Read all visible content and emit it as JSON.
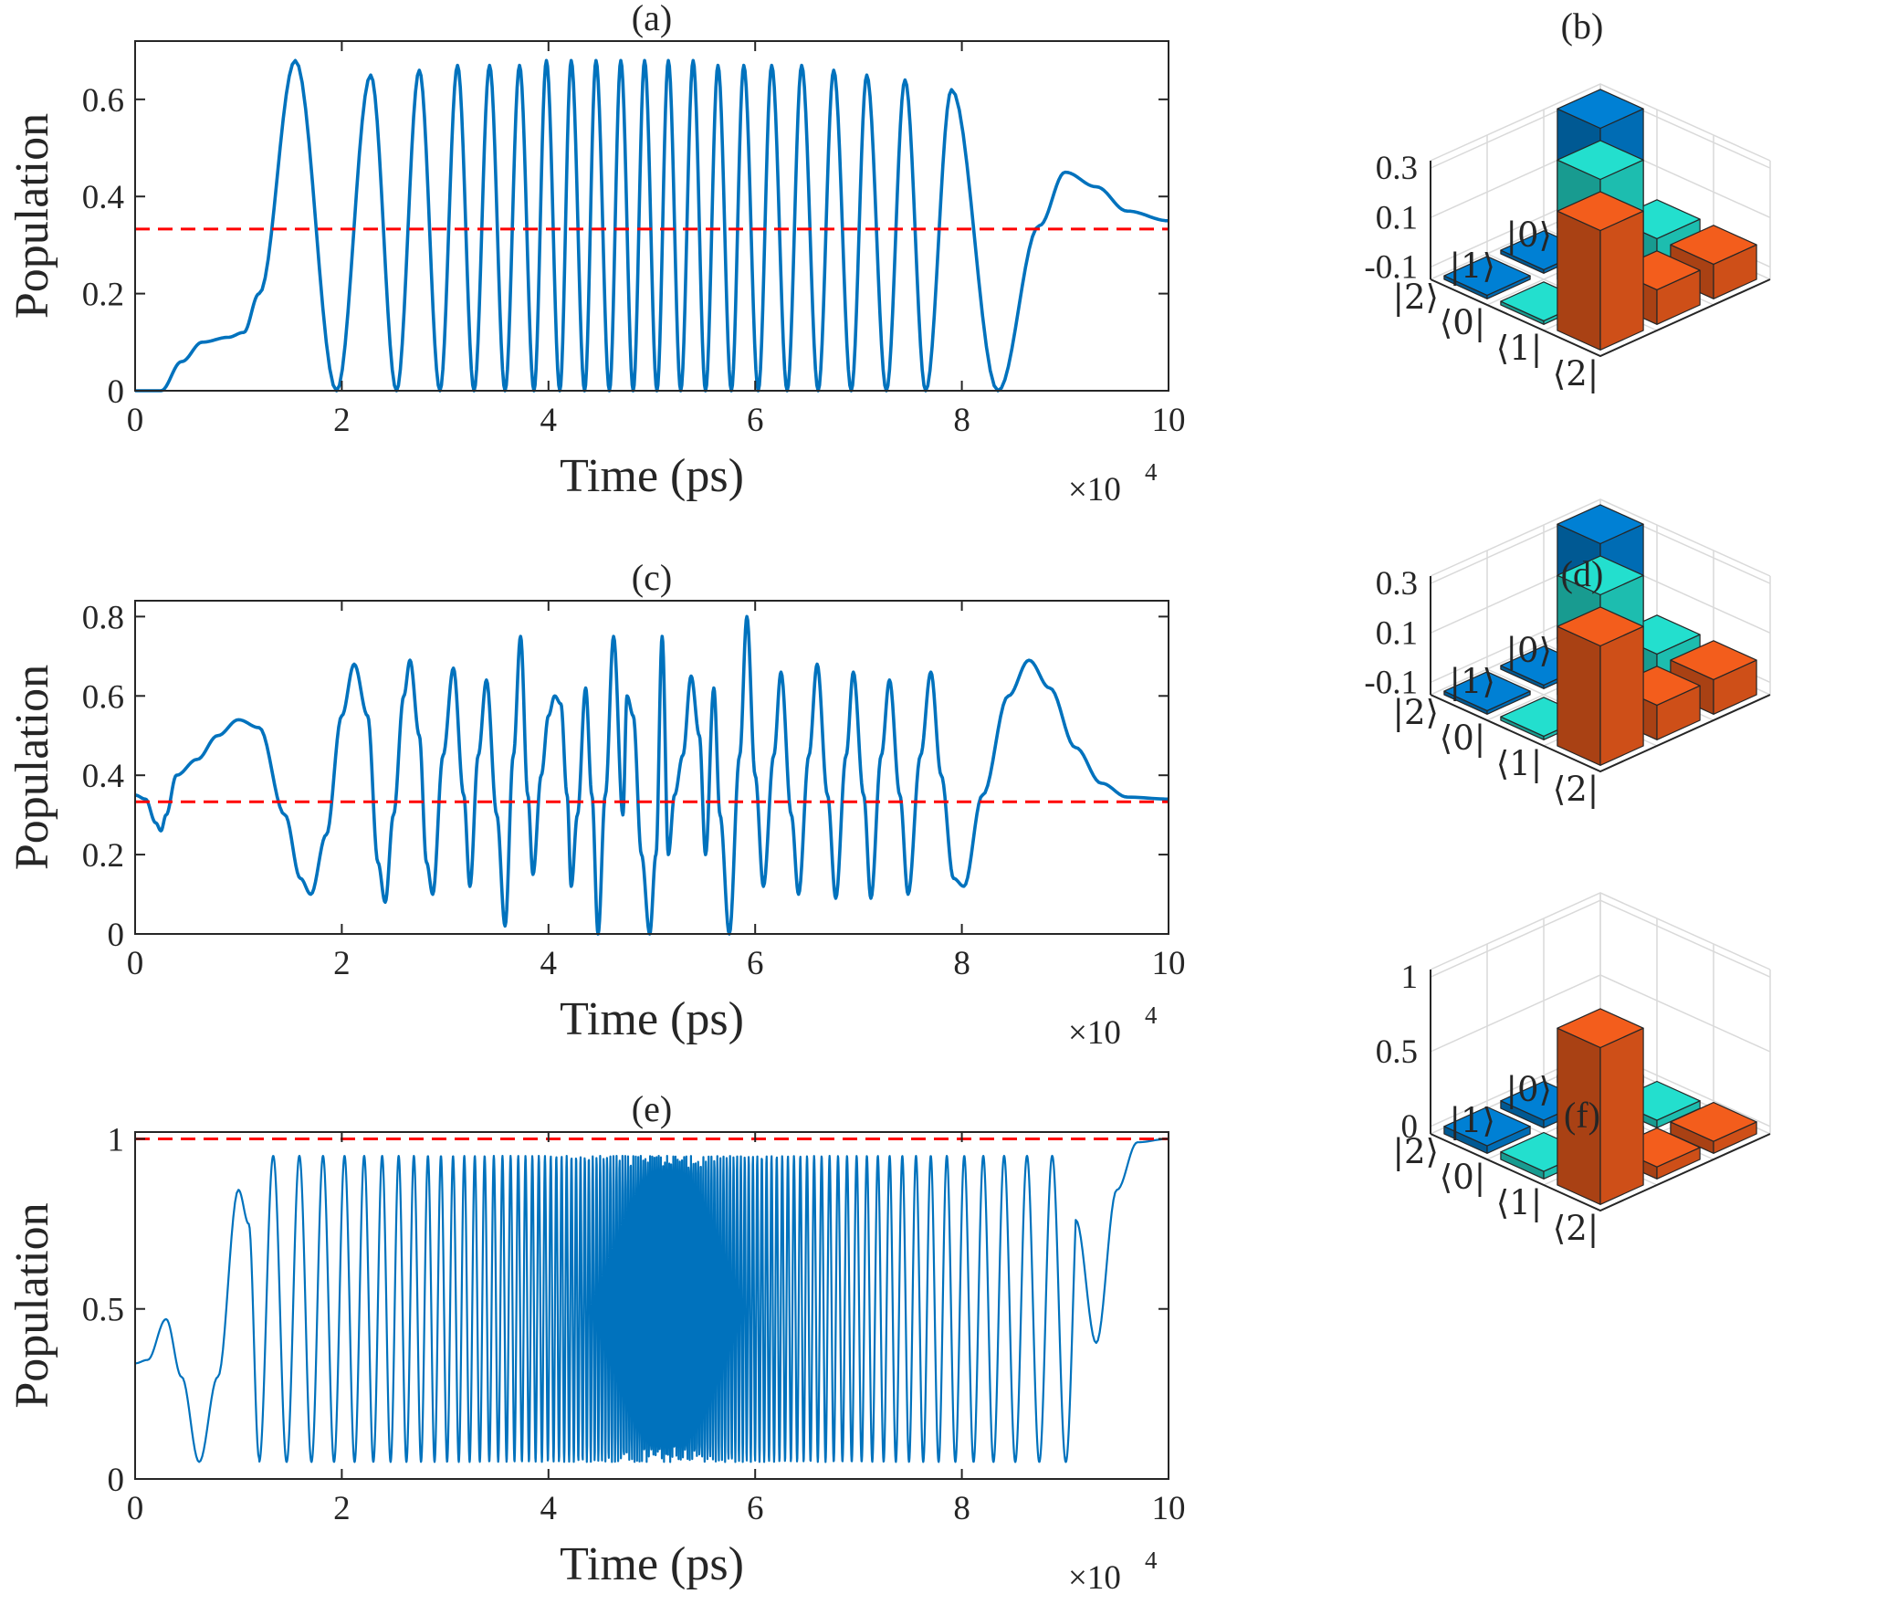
{
  "colors": {
    "curve": "#0072BD",
    "target": "#FF0000",
    "bar_blue": "#0072BD",
    "bar_teal": "#1FC7B8",
    "bar_orange": "#D95319"
  },
  "chart_data": [
    {
      "panel": "(a)",
      "type": "line",
      "xlabel": "Time (ps)",
      "ylabel": "Population",
      "x_multiplier": "×10",
      "x_exponent": "4",
      "xlim": [
        0,
        10
      ],
      "ylim": [
        0,
        0.72
      ],
      "xticks": [
        0,
        2,
        4,
        6,
        8,
        10
      ],
      "yticks": [
        0,
        0.2,
        0.4,
        0.6
      ],
      "ytick_labels": [
        "0",
        "0.2",
        "0.4",
        "0.6"
      ],
      "target_line": 0.333,
      "peak_times": [
        1.55,
        2.28,
        2.75,
        3.12,
        3.43,
        3.72,
        3.98,
        4.22,
        4.46,
        4.7,
        4.93,
        5.16,
        5.4,
        5.64,
        5.89,
        6.16,
        6.45,
        6.76,
        7.08,
        7.45,
        7.9
      ],
      "peak_values": [
        0.68,
        0.65,
        0.66,
        0.67,
        0.67,
        0.67,
        0.68,
        0.68,
        0.68,
        0.68,
        0.68,
        0.68,
        0.68,
        0.67,
        0.67,
        0.67,
        0.67,
        0.66,
        0.65,
        0.64,
        0.62
      ],
      "trough_times": [
        1.95,
        2.53,
        2.95,
        3.28,
        3.58,
        3.86,
        4.11,
        4.35,
        4.59,
        4.82,
        5.05,
        5.28,
        5.52,
        5.77,
        6.03,
        6.31,
        6.61,
        6.93,
        7.27,
        7.65,
        8.35
      ],
      "trough_values": [
        0.0,
        0.0,
        0.0,
        0.0,
        0.0,
        0.0,
        0.0,
        0.0,
        0.0,
        0.0,
        0.0,
        0.0,
        0.0,
        0.0,
        0.0,
        0.0,
        0.0,
        0.0,
        0.0,
        0.0,
        0.0
      ],
      "lead_in": [
        [
          0,
          0.0
        ],
        [
          0.25,
          0.0
        ],
        [
          0.45,
          0.06
        ],
        [
          0.65,
          0.1
        ],
        [
          0.9,
          0.11
        ],
        [
          1.05,
          0.12
        ],
        [
          1.2,
          0.2
        ]
      ],
      "tail": [
        [
          8.75,
          0.34
        ],
        [
          9.0,
          0.45
        ],
        [
          9.3,
          0.42
        ],
        [
          9.6,
          0.37
        ],
        [
          10,
          0.35
        ]
      ]
    },
    {
      "panel": "(c)",
      "type": "line",
      "xlabel": "Time (ps)",
      "ylabel": "Population",
      "x_multiplier": "×10",
      "x_exponent": "4",
      "xlim": [
        0,
        10
      ],
      "ylim": [
        0,
        0.84
      ],
      "xticks": [
        0,
        2,
        4,
        6,
        8,
        10
      ],
      "yticks": [
        0,
        0.2,
        0.4,
        0.6,
        0.8
      ],
      "ytick_labels": [
        "0",
        "0.2",
        "0.4",
        "0.6",
        "0.8"
      ],
      "target_line": 0.333,
      "points": [
        [
          0,
          0.35
        ],
        [
          0.1,
          0.34
        ],
        [
          0.2,
          0.28
        ],
        [
          0.25,
          0.26
        ],
        [
          0.3,
          0.3
        ],
        [
          0.4,
          0.4
        ],
        [
          0.6,
          0.44
        ],
        [
          0.8,
          0.5
        ],
        [
          1.0,
          0.54
        ],
        [
          1.2,
          0.52
        ],
        [
          1.45,
          0.3
        ],
        [
          1.6,
          0.14
        ],
        [
          1.7,
          0.1
        ],
        [
          1.85,
          0.25
        ],
        [
          2.0,
          0.55
        ],
        [
          2.12,
          0.68
        ],
        [
          2.25,
          0.55
        ],
        [
          2.35,
          0.18
        ],
        [
          2.42,
          0.08
        ],
        [
          2.5,
          0.3
        ],
        [
          2.6,
          0.6
        ],
        [
          2.66,
          0.69
        ],
        [
          2.75,
          0.5
        ],
        [
          2.82,
          0.18
        ],
        [
          2.88,
          0.1
        ],
        [
          2.98,
          0.45
        ],
        [
          3.08,
          0.67
        ],
        [
          3.18,
          0.35
        ],
        [
          3.24,
          0.12
        ],
        [
          3.32,
          0.45
        ],
        [
          3.4,
          0.64
        ],
        [
          3.5,
          0.3
        ],
        [
          3.58,
          0.02
        ],
        [
          3.66,
          0.45
        ],
        [
          3.73,
          0.75
        ],
        [
          3.8,
          0.35
        ],
        [
          3.85,
          0.15
        ],
        [
          3.93,
          0.4
        ],
        [
          4.0,
          0.55
        ],
        [
          4.06,
          0.6
        ],
        [
          4.12,
          0.58
        ],
        [
          4.18,
          0.35
        ],
        [
          4.22,
          0.12
        ],
        [
          4.28,
          0.3
        ],
        [
          4.36,
          0.62
        ],
        [
          4.42,
          0.35
        ],
        [
          4.48,
          0.0
        ],
        [
          4.55,
          0.35
        ],
        [
          4.63,
          0.75
        ],
        [
          4.72,
          0.3
        ],
        [
          4.76,
          0.6
        ],
        [
          4.82,
          0.55
        ],
        [
          4.9,
          0.2
        ],
        [
          4.98,
          0.0
        ],
        [
          5.04,
          0.2
        ],
        [
          5.1,
          0.75
        ],
        [
          5.16,
          0.2
        ],
        [
          5.22,
          0.35
        ],
        [
          5.3,
          0.45
        ],
        [
          5.38,
          0.65
        ],
        [
          5.46,
          0.5
        ],
        [
          5.52,
          0.2
        ],
        [
          5.6,
          0.62
        ],
        [
          5.66,
          0.3
        ],
        [
          5.75,
          0.0
        ],
        [
          5.85,
          0.45
        ],
        [
          5.92,
          0.8
        ],
        [
          6.0,
          0.4
        ],
        [
          6.08,
          0.12
        ],
        [
          6.18,
          0.45
        ],
        [
          6.25,
          0.66
        ],
        [
          6.35,
          0.3
        ],
        [
          6.42,
          0.1
        ],
        [
          6.52,
          0.45
        ],
        [
          6.6,
          0.68
        ],
        [
          6.7,
          0.35
        ],
        [
          6.78,
          0.09
        ],
        [
          6.88,
          0.45
        ],
        [
          6.95,
          0.66
        ],
        [
          7.05,
          0.35
        ],
        [
          7.12,
          0.09
        ],
        [
          7.22,
          0.45
        ],
        [
          7.3,
          0.64
        ],
        [
          7.4,
          0.35
        ],
        [
          7.48,
          0.1
        ],
        [
          7.6,
          0.45
        ],
        [
          7.7,
          0.66
        ],
        [
          7.8,
          0.4
        ],
        [
          7.92,
          0.14
        ],
        [
          8.02,
          0.12
        ],
        [
          8.2,
          0.35
        ],
        [
          8.45,
          0.6
        ],
        [
          8.65,
          0.69
        ],
        [
          8.85,
          0.62
        ],
        [
          9.1,
          0.47
        ],
        [
          9.35,
          0.38
        ],
        [
          9.6,
          0.345
        ],
        [
          10,
          0.34
        ]
      ]
    },
    {
      "panel": "(e)",
      "type": "line",
      "xlabel": "Time (ps)",
      "ylabel": "Population",
      "x_multiplier": "×10",
      "x_exponent": "4",
      "xlim": [
        0,
        10
      ],
      "ylim": [
        0,
        1.02
      ],
      "xticks": [
        0,
        2,
        4,
        6,
        8,
        10
      ],
      "yticks": [
        0,
        0.5,
        1
      ],
      "ytick_labels": [
        "0",
        "0.5",
        "1"
      ],
      "target_line": 1.0,
      "envelope": {
        "center": 0.5,
        "max": 0.95,
        "min": 0.05,
        "start": 1.2,
        "end": 9.1,
        "period_edge": 0.28,
        "period_center": 0.02
      },
      "lead_in": [
        [
          0,
          0.34
        ],
        [
          0.12,
          0.35
        ],
        [
          0.3,
          0.47
        ],
        [
          0.45,
          0.3
        ],
        [
          0.62,
          0.05
        ],
        [
          0.8,
          0.3
        ],
        [
          1.0,
          0.85
        ],
        [
          1.1,
          0.75
        ],
        [
          1.2,
          0.06
        ]
      ],
      "tail": [
        [
          9.1,
          0.06
        ],
        [
          9.3,
          0.4
        ],
        [
          9.5,
          0.85
        ],
        [
          9.7,
          0.99
        ],
        [
          10,
          1.0
        ]
      ]
    },
    {
      "panel": "(b)",
      "type": "bar3d",
      "row_labels": [
        "|0⟩",
        "|1⟩",
        "|2⟩"
      ],
      "col_labels": [
        "⟨0|",
        "⟨1|",
        "⟨2|"
      ],
      "zlim": [
        -0.15,
        0.33
      ],
      "zticks": [
        0.3,
        0.1,
        -0.1
      ],
      "ztick_labels": [
        "0.3",
        "0.1",
        "-0.1"
      ],
      "values": [
        [
          0.333,
          -0.01,
          -0.01
        ],
        [
          -0.16,
          0.333,
          -0.01
        ],
        [
          -0.16,
          -0.16,
          0.333
        ]
      ]
    },
    {
      "panel": "(d)",
      "type": "bar3d",
      "row_labels": [
        "|0⟩",
        "|1⟩",
        "|2⟩"
      ],
      "col_labels": [
        "⟨0|",
        "⟨1|",
        "⟨2|"
      ],
      "zlim": [
        -0.15,
        0.33
      ],
      "zticks": [
        0.3,
        0.1,
        -0.1
      ],
      "ztick_labels": [
        "0.3",
        "0.1",
        "-0.1"
      ],
      "values": [
        [
          0.333,
          -0.01,
          -0.01
        ],
        [
          -0.16,
          0.333,
          -0.01
        ],
        [
          -0.16,
          -0.16,
          0.333
        ]
      ]
    },
    {
      "panel": "(f)",
      "type": "bar3d",
      "row_labels": [
        "|0⟩",
        "|1⟩",
        "|2⟩"
      ],
      "col_labels": [
        "⟨0|",
        "⟨1|",
        "⟨2|"
      ],
      "zlim": [
        -0.05,
        1.05
      ],
      "zticks": [
        1,
        0.5,
        0
      ],
      "ztick_labels": [
        "1",
        "0.5",
        "0"
      ],
      "values": [
        [
          0.0,
          0.0,
          0.03
        ],
        [
          0.0,
          0.0,
          0.03
        ],
        [
          0.0,
          0.0,
          1.0
        ]
      ]
    }
  ]
}
